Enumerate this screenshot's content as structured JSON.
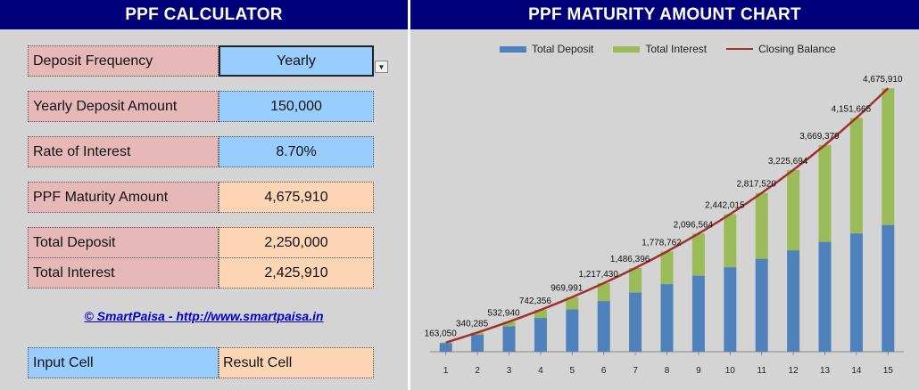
{
  "calculator": {
    "title": "PPF CALCULATOR",
    "deposit_frequency": {
      "label": "Deposit Frequency",
      "value": "Yearly"
    },
    "deposit_amount": {
      "label": "Yearly Deposit Amount",
      "value": "150,000"
    },
    "rate": {
      "label": "Rate of Interest",
      "value": "8.70%"
    },
    "maturity": {
      "label": "PPF Maturity Amount",
      "value": "4,675,910"
    },
    "total_deposit": {
      "label": "Total Deposit",
      "value": "2,250,000"
    },
    "total_interest": {
      "label": "Total Interest",
      "value": "2,425,910"
    },
    "link_text": "© SmartPaisa - http://www.smartpaisa.in",
    "legend_input": "Input Cell",
    "legend_result": "Result Cell"
  },
  "chart_title": "PPF MATURITY AMOUNT CHART",
  "colors": {
    "deposit": "#4f81bd",
    "interest": "#9bbb59",
    "balance": "#a0322d",
    "header": "#00007a"
  },
  "chart_data": {
    "type": "bar",
    "stacked": true,
    "categories": [
      "1",
      "2",
      "3",
      "4",
      "5",
      "6",
      "7",
      "8",
      "9",
      "10",
      "11",
      "12",
      "13",
      "14",
      "15"
    ],
    "series": [
      {
        "name": "Total Deposit",
        "values": [
          150000,
          300000,
          450000,
          600000,
          750000,
          900000,
          1050000,
          1200000,
          1350000,
          1500000,
          1650000,
          1800000,
          1950000,
          2100000,
          2250000
        ]
      },
      {
        "name": "Total Interest",
        "values": [
          13050,
          40285,
          82940,
          142356,
          219991,
          317430,
          436396,
          578762,
          746564,
          942015,
          1167520,
          1425694,
          1719379,
          2051665,
          2425910
        ]
      },
      {
        "name": "Closing Balance",
        "type": "line",
        "values": [
          163050,
          340285,
          532940,
          742356,
          969991,
          1217430,
          1486396,
          1778762,
          2096564,
          2442015,
          2817520,
          3225694,
          3669379,
          4151665,
          4675910
        ]
      }
    ],
    "data_labels": [
      "163,050",
      "340,285",
      "532,940",
      "742,356",
      "969,991",
      "1,217,430",
      "1,486,396",
      "1,778,762",
      "2,096,564",
      "2,442,015",
      "2,817,520",
      "3,225,694",
      "3,669,379",
      "4,151,665",
      "4,675,910"
    ],
    "title": "PPF MATURITY AMOUNT CHART",
    "xlabel": "",
    "ylabel": "",
    "ylim": [
      0,
      4900000
    ],
    "legend": [
      "Total Deposit",
      "Total Interest",
      "Closing Balance"
    ],
    "legend_position": "top"
  }
}
